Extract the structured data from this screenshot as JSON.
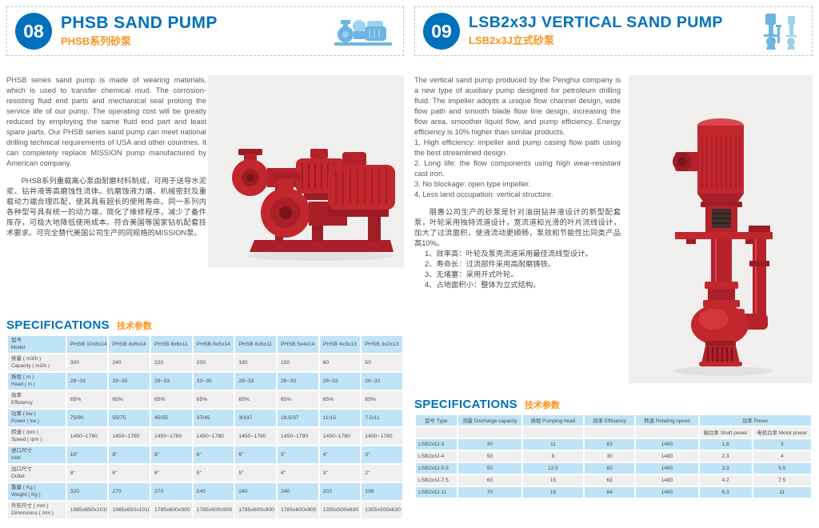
{
  "colors": {
    "accent_blue": "#0071bc",
    "accent_orange": "#f7941e",
    "table_blue": "#bfe3f7",
    "table_gray": "#efefef",
    "pump_red": "#c1272d",
    "photo_background": "#f1efee"
  },
  "icons": {
    "left_header_thumb": "horizontal-sand-pump-icon",
    "right_header_thumb": "vertical-sand-pump-icon",
    "left_photo": "phsb-horizontal-sand-pumps-photo",
    "right_photo": "lsb-vertical-sand-pump-photo"
  },
  "left": {
    "number": "08",
    "title": "PHSB SAND PUMP",
    "subtitle": "PHSB系列砂泵",
    "paragraph_en": "PHSB series sand pump is made of wearing materials, which is used to transfer chemical mud. The corrosion-resisting fluid end parts and mechanical seal prolong the service life of our pump. The operating cost will be greatly reduced by employing the same fluid end part and least spare parts. Our PHSB series sand pump can meet national drilling technical requirements of USA and other countries. It can completely replace MISSION pump manufactured by American company.",
    "paragraph_zh": "PHSB系列重载离心泵由耐磨材料制成，可用于送导水泥浆、钻井液等高磨蚀性流体。抗磨蚀液力端、机械密封及重载动力端合理匹配，使其具有超长的使用寿命。同一系列内各种型号具有统一的动力端，简化了维修程序，减少了备件库存，可极大地降低使用成本。符合美国等国家钻机配套技术要求。可完全替代美国公司生产的同规格的MISSION泵。",
    "spec_en": "SPECIFICATIONS",
    "spec_zh": "技术参数",
    "table": {
      "header": {
        "zh": "型号",
        "en": "Model"
      },
      "models": [
        "PHSB 10x8x14",
        "PHSB 8x6x14",
        "PHSB 8x6x11",
        "PHSB 8x5x14",
        "PHSB 6x5x11",
        "PHSB 5x4x14",
        "PHSB 4x3x13",
        "PHSB 3x2x13"
      ],
      "rows": [
        {
          "zh": "排量 ( m3/h )",
          "en": "Capacity ( m3/h )",
          "values": [
            "300",
            "240",
            "220",
            "200",
            "180",
            "150",
            "60",
            "50"
          ]
        },
        {
          "zh": "扬程 ( m )",
          "en": "Head ( m )",
          "values": [
            "28~33",
            "33~35",
            "28~33",
            "33~35",
            "28~33",
            "28~33",
            "26~32",
            "26~32"
          ]
        },
        {
          "zh": "效率",
          "en": "Efficiency",
          "values": [
            "65%",
            "65%",
            "65%",
            "65%",
            "65%",
            "65%",
            "65%",
            "65%"
          ]
        },
        {
          "zh": "功率 ( kw )",
          "en": "Power ( kw )",
          "values": [
            "75/90",
            "55/75",
            "45/55",
            "37/45",
            "30/37",
            "18.5/37",
            "11/15",
            "7.5/11"
          ]
        },
        {
          "zh": "转速 ( rpm )",
          "en": "Speed ( rpm )",
          "values": [
            "1450~1780",
            "1450~1780",
            "1450~1780",
            "1450~1780",
            "1450~1780",
            "1450~1780",
            "1450~1780",
            "1450~1780"
          ]
        },
        {
          "zh": "进口尺寸",
          "en": "Inlet",
          "values": [
            "10\"",
            "8\"",
            "8\"",
            "6\"",
            "6\"",
            "5\"",
            "4\"",
            "3\""
          ]
        },
        {
          "zh": "出口尺寸",
          "en": "Outlet",
          "values": [
            "8\"",
            "6\"",
            "6\"",
            "5\"",
            "5\"",
            "4\"",
            "3\"",
            "2\""
          ]
        },
        {
          "zh": "重量 ( Kg )",
          "en": "Weight ( Kg )",
          "values": [
            "320",
            "270",
            "270",
            "240",
            "240",
            "240",
            "202",
            "198"
          ]
        },
        {
          "zh": "外形尺寸 ( mm )",
          "en": "Dimensions ( mm )",
          "values": [
            "1985x650x1010",
            "1985x650x1010",
            "1785x600x900",
            "1785x600x900",
            "1785x600x900",
            "1785x600x900",
            "1355x500x630",
            "1355x500x630"
          ]
        }
      ]
    }
  },
  "right": {
    "number": "09",
    "title": "LSB2x3J VERTICAL SAND PUMP",
    "subtitle": "LSB2x3J立式砂泵",
    "paragraph_en": "The vertical sand pump produced by the Penghui company is a new type of auxiliary pump designed for petroleum drilling fluid. The impeller adopts a unique flow channel design, wide flow path and smooth blade flow line design, increasing the flow area, smoother liquid flow, and pump efficiency. Energy efficiency is 10% higher than similar products.",
    "list_en": [
      "1, High efficiency: impeller and pump casing flow path using the best streamlined design.",
      "2. Long life: the flow components using high wear-resistant cast iron.",
      "3. No blockage: open type impeller.",
      "4, Less land occupation: vertical structure."
    ],
    "paragraph_zh": "朋惠公司生产的砂泵是针对油田钻井液设计的新型配套泵，叶轮采用独特流道设计，宽流道和光滑的叶片流线设计，加大了过流面积，使液流动更顺畅，泵效和节能性比同类产品高10%。",
    "list_zh": [
      "1、效率高：叶轮及泵壳流道采用最佳流线型设计。",
      "2、寿命长：过流部件采用高耐磨铸铁。",
      "3、无堵塞：采用开式叶轮。",
      "4、占地面积小：整体为立式结构。"
    ],
    "spec_en": "SPECIFICATIONS",
    "spec_zh": "技术参数",
    "table": {
      "headers": [
        {
          "zh": "型号",
          "en": "Type"
        },
        {
          "zh": "流量",
          "en": "Discharge capacity"
        },
        {
          "zh": "扬程",
          "en": "Pumping head"
        },
        {
          "zh": "效率",
          "en": "Efficiency"
        },
        {
          "zh": "转速",
          "en": "Rotating speed"
        }
      ],
      "power_group": {
        "zh": "功率",
        "en": "Power"
      },
      "power_sub": [
        {
          "zh": "轴功率",
          "en": "Shaft power"
        },
        {
          "zh": "电机功率",
          "en": "Motor power"
        }
      ],
      "rows": [
        [
          "LSB2x3J-3",
          "30",
          "11",
          "63",
          "1480",
          "1.6",
          "3"
        ],
        [
          "LSB2x3J-4",
          "50",
          "8",
          "30",
          "1480",
          "2.3",
          "4"
        ],
        [
          "LSB2x3J-5.5",
          "50",
          "12.5",
          "62",
          "1480",
          "3.3",
          "5.5"
        ],
        [
          "LSB2x3J-7.5",
          "60",
          "15",
          "63",
          "1480",
          "4.2",
          "7.5"
        ],
        [
          "LSB2x3J-11",
          "70",
          "18",
          "64",
          "1480",
          "6.3",
          "11"
        ]
      ]
    }
  }
}
